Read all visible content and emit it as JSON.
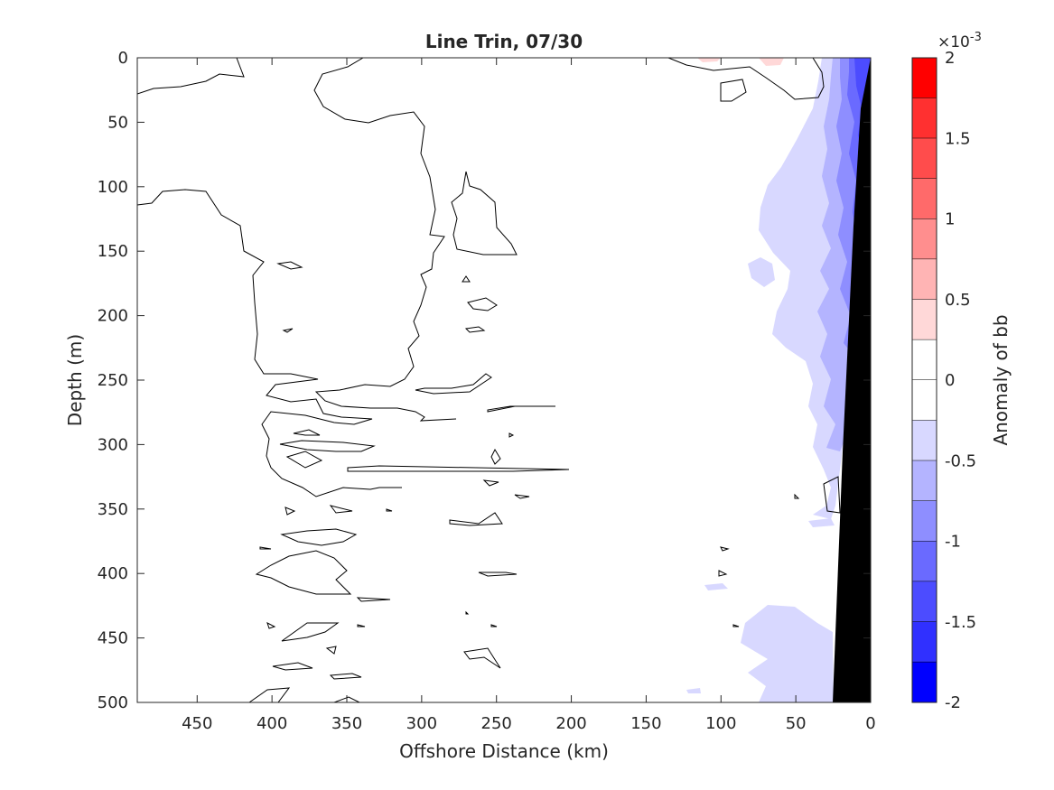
{
  "chart_data": {
    "type": "heatmap",
    "subtype": "filled-contour",
    "title": "Line Trin, 07/30",
    "xlabel": "Offshore Distance (km)",
    "ylabel": "Depth (m)",
    "xlim": [
      490,
      0
    ],
    "x_reversed": true,
    "xticks": [
      "450",
      "400",
      "350",
      "300",
      "250",
      "200",
      "150",
      "100",
      "50",
      "0"
    ],
    "ylim": [
      0,
      500
    ],
    "y_reversed": true,
    "yticks": [
      "0",
      "50",
      "100",
      "150",
      "200",
      "250",
      "300",
      "350",
      "400",
      "450",
      "500"
    ],
    "colorbar": {
      "label": "Anomaly of bb",
      "exponent_label": "×10",
      "exponent_power": "-3",
      "range": [
        -2,
        2
      ],
      "scale": 0.001,
      "ticks": [
        "2",
        "1.5",
        "1",
        "0.5",
        "0",
        "-0.5",
        "-1",
        "-1.5",
        "-2"
      ],
      "levels": [
        2,
        1.75,
        1.5,
        1.25,
        1,
        0.75,
        0.5,
        0.25,
        0,
        -0.25,
        -0.5,
        -0.75,
        -1,
        -1.25,
        -1.5,
        -1.75,
        -2
      ],
      "colors": [
        "#ff0000",
        "#ff3030",
        "#ff4c4c",
        "#ff6a6a",
        "#ff8e8e",
        "#ffb4b4",
        "#ffd8d8",
        "#ffffff",
        "#ffffff",
        "#d8d8ff",
        "#b4b4ff",
        "#8e8eff",
        "#6a6aff",
        "#4c4cff",
        "#3030ff",
        "#0000ff"
      ]
    },
    "colors": {
      "bathymetry": "#000000",
      "zero_contour": "#000000"
    }
  }
}
